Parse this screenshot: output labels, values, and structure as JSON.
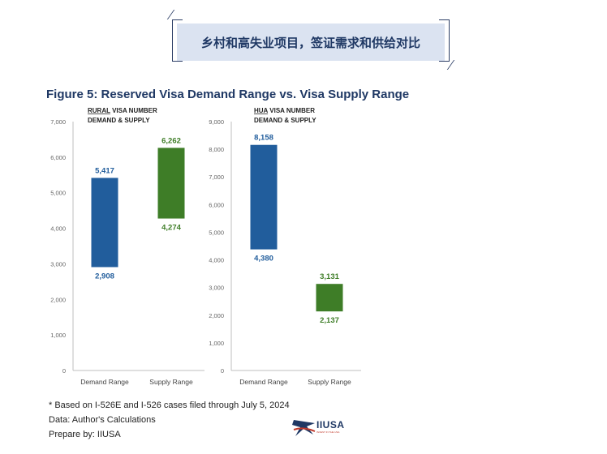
{
  "banner": {
    "text": "乡村和高失业项目，签证需求和供给对比"
  },
  "figure_title": "Figure 5: Reserved Visa Demand Range vs. Visa Supply Range",
  "chart_data": [
    {
      "type": "bar",
      "title_underlined": "RURAL",
      "title_rest": " VISA NUMBER",
      "title_line2": "DEMAND & SUPPLY",
      "categories": [
        "Demand Range",
        "Supply Range"
      ],
      "ranges": [
        {
          "low": 2908,
          "high": 5417,
          "low_label": "2,908",
          "high_label": "5,417",
          "color": "#215d9c"
        },
        {
          "low": 4274,
          "high": 6262,
          "low_label": "4,274",
          "high_label": "6,262",
          "color": "#3e7d27"
        }
      ],
      "ylim": [
        0,
        7000
      ],
      "yticks": [
        "0",
        "1,000",
        "2,000",
        "3,000",
        "4,000",
        "5,000",
        "6,000",
        "7,000"
      ],
      "grid": false
    },
    {
      "type": "bar",
      "title_underlined": "HUA",
      "title_rest": " VISA NUMBER",
      "title_line2": "DEMAND & SUPPLY",
      "categories": [
        "Demand Range",
        "Supply Range"
      ],
      "ranges": [
        {
          "low": 4380,
          "high": 8158,
          "low_label": "4,380",
          "high_label": "8,158",
          "color": "#215d9c"
        },
        {
          "low": 2137,
          "high": 3131,
          "low_label": "2,137",
          "high_label": "3,131",
          "color": "#3e7d27"
        }
      ],
      "ylim": [
        0,
        9000
      ],
      "yticks": [
        "0",
        "1,000",
        "2,000",
        "3,000",
        "4,000",
        "5,000",
        "6,000",
        "7,000",
        "8,000",
        "9,000"
      ],
      "grid": false
    }
  ],
  "footer": {
    "note": "* Based on I-526E and I-526 cases filed through July 5, 2024",
    "data": "Data: Author's Calculations",
    "prepared": "Prepare by: IIUSA"
  },
  "logo": {
    "text": "IIUSA",
    "tagline": "INVEST IN THE USA",
    "colors": [
      "#1f3864",
      "#c0392b"
    ]
  }
}
